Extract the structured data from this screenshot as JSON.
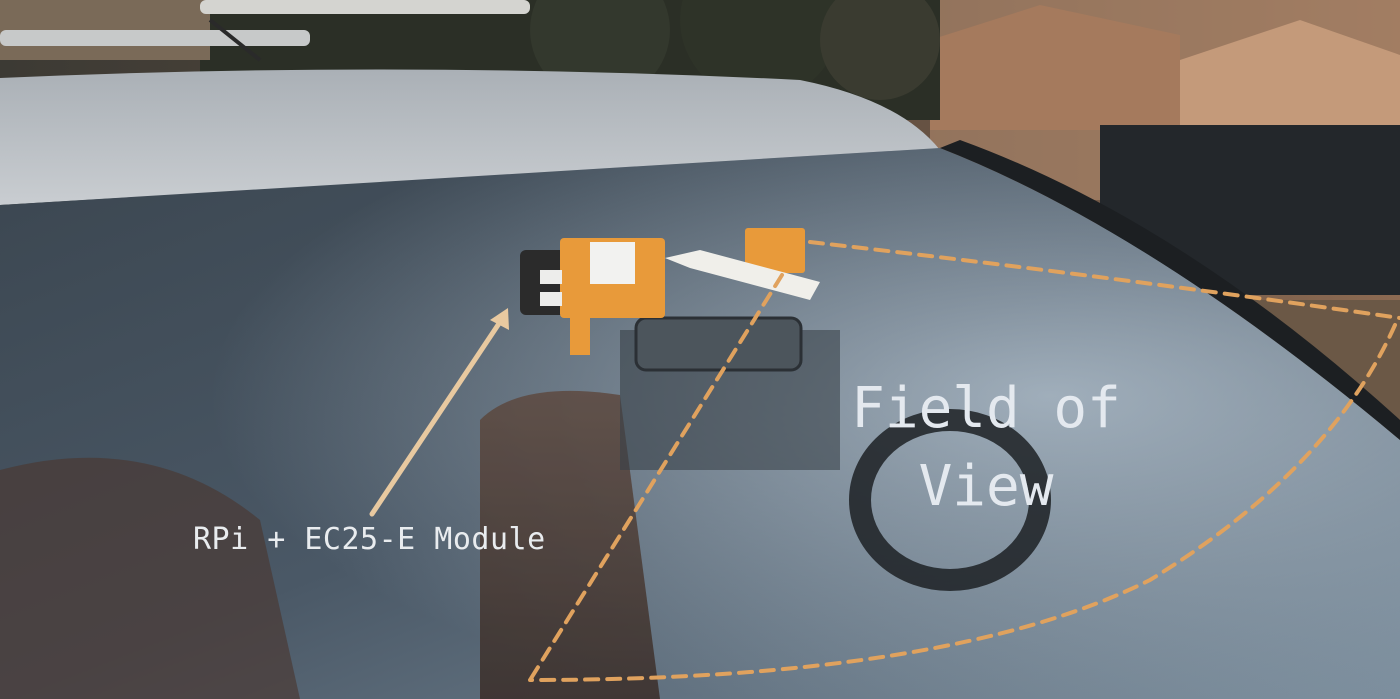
{
  "photo": {
    "subject": "car-windshield-with-mounted-device"
  },
  "annotations": {
    "module_label": "RPi + EC25-E Module",
    "fov_line1": "Field of",
    "fov_line2": "View"
  },
  "colors": {
    "annotation_dash": "#e0a25e",
    "arrow": "#e8c9a0",
    "device_orange": "#e89a3a",
    "label_text": "#e9ecef"
  }
}
